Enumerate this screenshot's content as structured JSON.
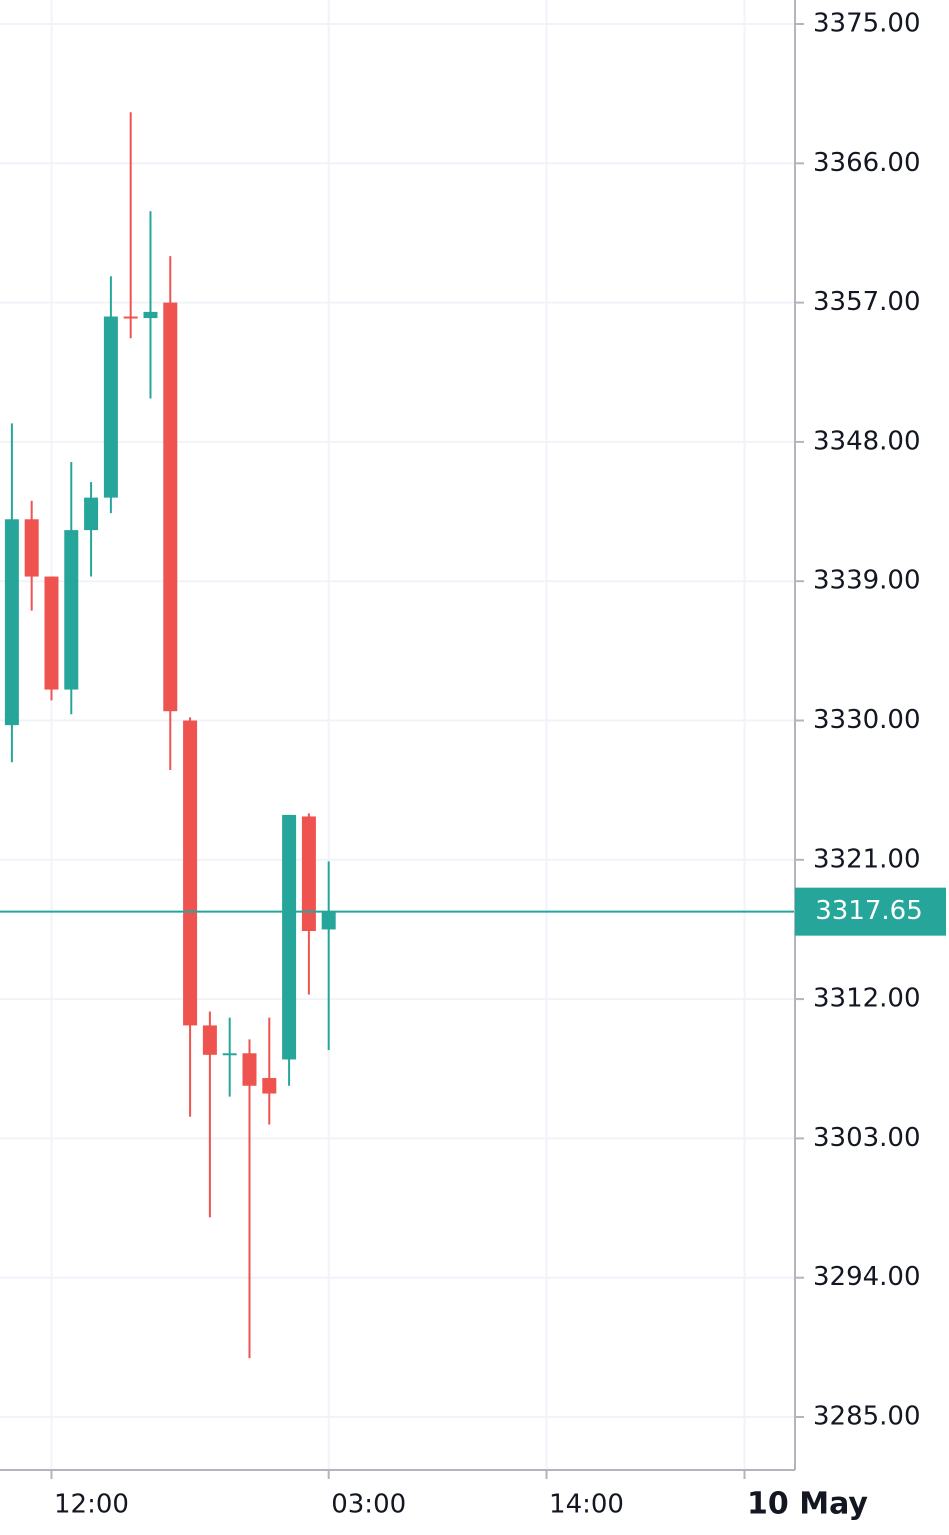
{
  "chart_data": {
    "type": "candlestick",
    "open": [
      3329.7,
      3343.0,
      3339.3,
      3332.0,
      3342.3,
      3344.4,
      3356.1,
      3356.0,
      3357.0,
      3330.0,
      3310.3,
      3308.4,
      3308.5,
      3306.9,
      3308.1,
      3323.8,
      3316.5
    ],
    "high": [
      3349.2,
      3344.2,
      3339.3,
      3346.7,
      3345.4,
      3358.7,
      3369.3,
      3362.9,
      3360.0,
      3330.2,
      3311.2,
      3310.8,
      3309.4,
      3310.8,
      3323.9,
      3324.0,
      3320.9
    ],
    "low": [
      3327.3,
      3337.1,
      3331.3,
      3330.4,
      3339.3,
      3343.4,
      3354.7,
      3350.8,
      3326.8,
      3304.4,
      3297.9,
      3305.7,
      3288.8,
      3303.9,
      3306.4,
      3312.3,
      3308.7
    ],
    "close": [
      3343.0,
      3339.3,
      3332.0,
      3342.3,
      3344.4,
      3356.1,
      3356.0,
      3356.4,
      3330.6,
      3310.3,
      3308.4,
      3308.5,
      3306.4,
      3305.9,
      3323.9,
      3316.4,
      3317.65
    ],
    "up_color": "#26a69a",
    "down_color": "#ef5350",
    "last_price": 3317.65,
    "last_price_color": "#26a69a",
    "xlim": [
      -0.6,
      39.55
    ],
    "xticks": [
      {
        "value": 2,
        "label": "12:00"
      },
      {
        "value": 16,
        "label": "03:00"
      },
      {
        "value": 27,
        "label": "14:00"
      },
      {
        "value": 37,
        "label": "10 May",
        "bold": true
      }
    ],
    "ylim": [
      3285,
      3375
    ],
    "yticks": [
      {
        "value": 3375,
        "label": "3375.00"
      },
      {
        "value": 3366,
        "label": "3366.00"
      },
      {
        "value": 3357,
        "label": "3357.00"
      },
      {
        "value": 3348,
        "label": "3348.00"
      },
      {
        "value": 3339,
        "label": "3339.00"
      },
      {
        "value": 3330,
        "label": "3330.00"
      },
      {
        "value": 3321,
        "label": "3321.00"
      },
      {
        "value": 3312,
        "label": "3312.00"
      },
      {
        "value": 3303,
        "label": "3303.00"
      },
      {
        "value": 3294,
        "label": "3294.00"
      },
      {
        "value": 3285,
        "label": "3285.00"
      }
    ],
    "grid": true
  }
}
